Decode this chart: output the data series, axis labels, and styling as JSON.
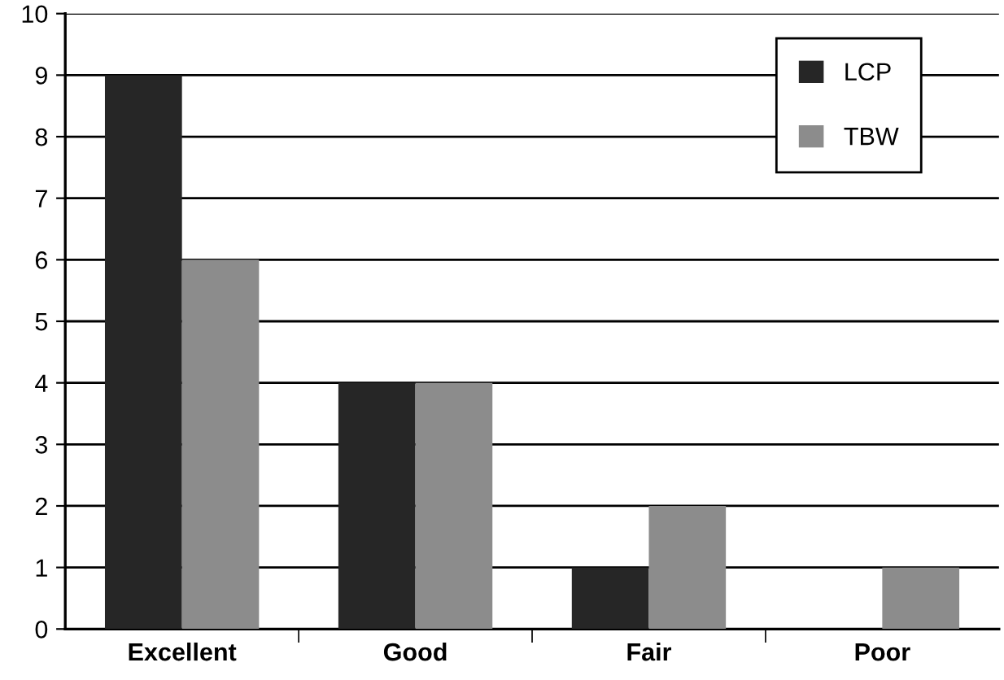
{
  "chart_data": {
    "type": "bar",
    "categories": [
      "Excellent",
      "Good",
      "Fair",
      "Poor"
    ],
    "series": [
      {
        "name": "LCP",
        "color": "#262626",
        "values": [
          9,
          4,
          1,
          0
        ]
      },
      {
        "name": "TBW",
        "color": "#8c8c8c",
        "values": [
          6,
          4,
          2,
          1
        ]
      }
    ],
    "ylim": [
      0,
      10
    ],
    "yticks": [
      0,
      1,
      2,
      3,
      4,
      5,
      6,
      7,
      8,
      9,
      10
    ],
    "grid": "y",
    "legend": "top right"
  }
}
